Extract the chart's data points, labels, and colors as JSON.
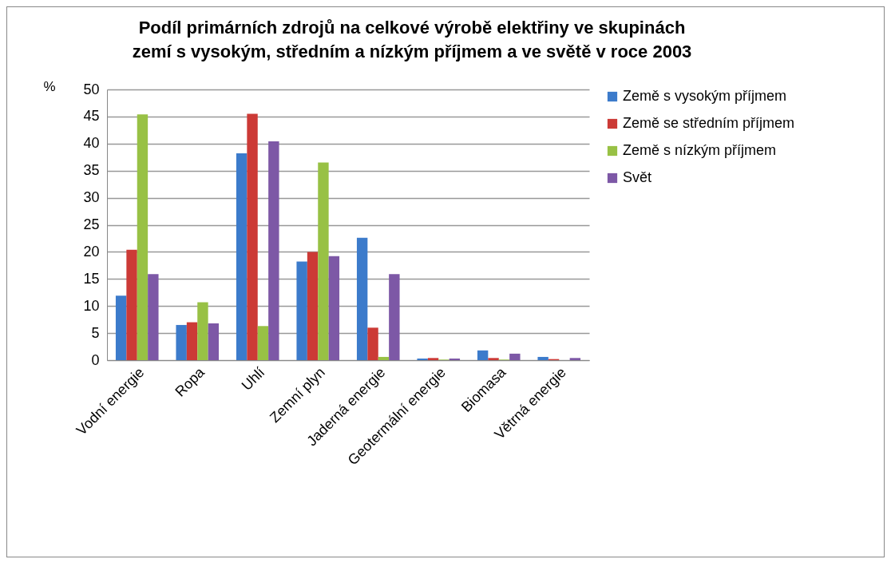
{
  "chart_data": {
    "type": "bar",
    "title": "Podíl primárních zdrojů na celkové výrobě elektřiny ve skupinách zemí s vysokým, středním a nízkým příjmem a ve světě v roce 2003",
    "ylabel": "%",
    "categories": [
      "Vodní energie",
      "Ropa",
      "Uhlí",
      "Zemní plyn",
      "Jaderná energie",
      "Geotermální energie",
      "Biomasa",
      "Větrná energie"
    ],
    "series": [
      {
        "name": "Země s vysokým příjmem",
        "color": "#3c7bcb",
        "values": [
          11.9,
          6.5,
          38.2,
          18.2,
          22.6,
          0.3,
          1.8,
          0.6
        ]
      },
      {
        "name": "Země se středním příjmem",
        "color": "#cc3a36",
        "values": [
          20.4,
          7.0,
          45.5,
          20.0,
          6.0,
          0.4,
          0.4,
          0.2
        ]
      },
      {
        "name": "Země s nízkým příjmem",
        "color": "#98c145",
        "values": [
          45.4,
          10.7,
          6.3,
          36.5,
          0.6,
          0.1,
          0.1,
          0.0
        ]
      },
      {
        "name": "Svět",
        "color": "#7d58a6",
        "values": [
          15.9,
          6.8,
          40.4,
          19.2,
          15.9,
          0.3,
          1.2,
          0.4
        ]
      }
    ],
    "ylim": [
      0,
      50
    ],
    "yticks": [
      0,
      5,
      10,
      15,
      20,
      25,
      30,
      35,
      40,
      45,
      50
    ],
    "grid": "y",
    "legend": "right"
  }
}
